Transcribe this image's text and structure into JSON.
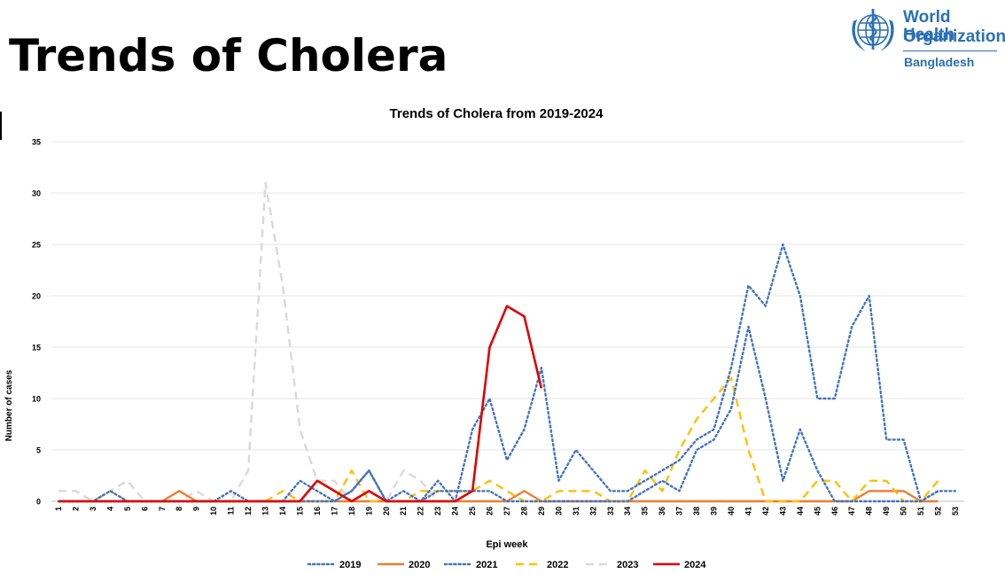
{
  "page": {
    "title": "Trends of Cholera"
  },
  "logo": {
    "line1": "World Health",
    "line2": "Organization",
    "country": "Bangladesh"
  },
  "chart_data": {
    "type": "line",
    "title": "Trends of Cholera from 2019-2024",
    "xlabel": "Epi week",
    "ylabel": "Number of cases",
    "ylim": [
      0,
      35
    ],
    "yticks": [
      0,
      5,
      10,
      15,
      20,
      25,
      30,
      35
    ],
    "grid": true,
    "legend_position": "bottom",
    "x": [
      1,
      2,
      3,
      4,
      5,
      6,
      7,
      8,
      9,
      10,
      11,
      12,
      13,
      14,
      15,
      16,
      17,
      18,
      19,
      20,
      21,
      22,
      23,
      24,
      25,
      26,
      27,
      28,
      29,
      30,
      31,
      32,
      33,
      34,
      35,
      36,
      37,
      38,
      39,
      40,
      41,
      42,
      43,
      44,
      45,
      46,
      47,
      48,
      49,
      50,
      51,
      52,
      53
    ],
    "series": [
      {
        "name": "2019",
        "color": "#4472c4",
        "dash": "dot",
        "values": [
          0,
          0,
          0,
          0,
          0,
          0,
          0,
          0,
          0,
          0,
          0,
          0,
          0,
          0,
          0,
          0,
          0,
          1,
          3,
          0,
          1,
          0,
          2,
          0,
          7,
          10,
          4,
          7,
          13,
          2,
          5,
          3,
          1,
          1,
          2,
          3,
          4,
          6,
          7,
          13,
          21,
          19,
          25,
          20,
          10,
          10,
          17,
          20,
          6,
          6,
          0,
          1,
          1
        ]
      },
      {
        "name": "2020",
        "color": "#ed7d31",
        "dash": "solid",
        "values": [
          0,
          0,
          0,
          0,
          0,
          0,
          0,
          1,
          0,
          0,
          0,
          0,
          0,
          0,
          0,
          0,
          0,
          0,
          0,
          0,
          0,
          0,
          0,
          0,
          0,
          0,
          0,
          1,
          0,
          0,
          0,
          0,
          0,
          0,
          0,
          0,
          0,
          0,
          0,
          0,
          0,
          0,
          0,
          0,
          0,
          0,
          0,
          1,
          1,
          1,
          0,
          0,
          null
        ]
      },
      {
        "name": "2021",
        "color": "#4472c4",
        "dash": "dot",
        "values": [
          0,
          0,
          0,
          1,
          0,
          0,
          0,
          0,
          0,
          0,
          1,
          0,
          0,
          0,
          2,
          1,
          0,
          1,
          3,
          0,
          0,
          0,
          1,
          1,
          1,
          1,
          0,
          0,
          0,
          0,
          0,
          0,
          0,
          0,
          1,
          2,
          1,
          5,
          6,
          9,
          17,
          10,
          2,
          7,
          3,
          0,
          0,
          0,
          0,
          0,
          0,
          1,
          null
        ]
      },
      {
        "name": "2022",
        "color": "#ffc000",
        "dash": "dash",
        "values": [
          0,
          0,
          0,
          1,
          0,
          0,
          0,
          0,
          0,
          0,
          0,
          0,
          0,
          1,
          0,
          0,
          0,
          3,
          0,
          0,
          0,
          1,
          1,
          1,
          1,
          2,
          1,
          0,
          0,
          1,
          1,
          1,
          0,
          0,
          3,
          1,
          5,
          8,
          10,
          12,
          5,
          0,
          0,
          0,
          2,
          2,
          0,
          2,
          2,
          0,
          0,
          2,
          null
        ]
      },
      {
        "name": "2023",
        "color": "#d9d9d9",
        "dash": "dash",
        "values": [
          1,
          1,
          0,
          1,
          2,
          0,
          0,
          0,
          1,
          0,
          0,
          3,
          31,
          21,
          7,
          2,
          2,
          0,
          0,
          0,
          3,
          2,
          0,
          0,
          0,
          0,
          0,
          0,
          0,
          0,
          0,
          0,
          0,
          0,
          0,
          0,
          0,
          0,
          0,
          0,
          0,
          0,
          0,
          0,
          0,
          0,
          0,
          0,
          0,
          0,
          0,
          0,
          null
        ]
      },
      {
        "name": "2024",
        "color": "#e00000",
        "dash": "solid",
        "values": [
          0,
          0,
          0,
          0,
          0,
          0,
          0,
          0,
          0,
          0,
          0,
          0,
          0,
          0,
          0,
          2,
          1,
          0,
          1,
          0,
          0,
          0,
          0,
          0,
          1,
          15,
          19,
          18,
          11,
          null,
          null,
          null,
          null,
          null,
          null,
          null,
          null,
          null,
          null,
          null,
          null,
          null,
          null,
          null,
          null,
          null,
          null,
          null,
          null,
          null,
          null,
          null,
          null
        ]
      }
    ]
  }
}
